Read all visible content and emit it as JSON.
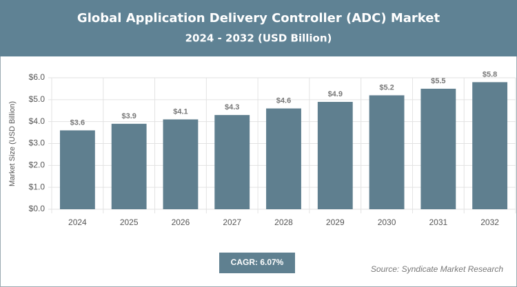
{
  "chart_data": {
    "type": "bar",
    "title": "Global Application Delivery Controller (ADC) Market",
    "subtitle": "2024 - 2032 (USD Billion)",
    "y_label": "Market Size (USD Billion)",
    "categories": [
      "2024",
      "2025",
      "2026",
      "2027",
      "2028",
      "2029",
      "2030",
      "2031",
      "2032"
    ],
    "values": [
      3.6,
      3.9,
      4.1,
      4.3,
      4.6,
      4.9,
      5.2,
      5.5,
      5.8
    ],
    "value_labels": [
      "$3.6",
      "$3.9",
      "$4.1",
      "$4.3",
      "$4.6",
      "$4.9",
      "$5.2",
      "$5.5",
      "$5.8"
    ],
    "color": "#5f7f8f",
    "ylim": [
      0,
      6
    ],
    "yticks": [
      {
        "value": 0,
        "label": "$0.0"
      },
      {
        "value": 1,
        "label": "$1.0"
      },
      {
        "value": 2,
        "label": "$2.0"
      },
      {
        "value": 3,
        "label": "$3.0"
      },
      {
        "value": 4,
        "label": "$4.0"
      },
      {
        "value": 5,
        "label": "$5.0"
      },
      {
        "value": 6,
        "label": "$6.0"
      }
    ],
    "grid": true,
    "cagr": "CAGR: 6.07%",
    "source": "Source: Syndicate Market Research"
  }
}
